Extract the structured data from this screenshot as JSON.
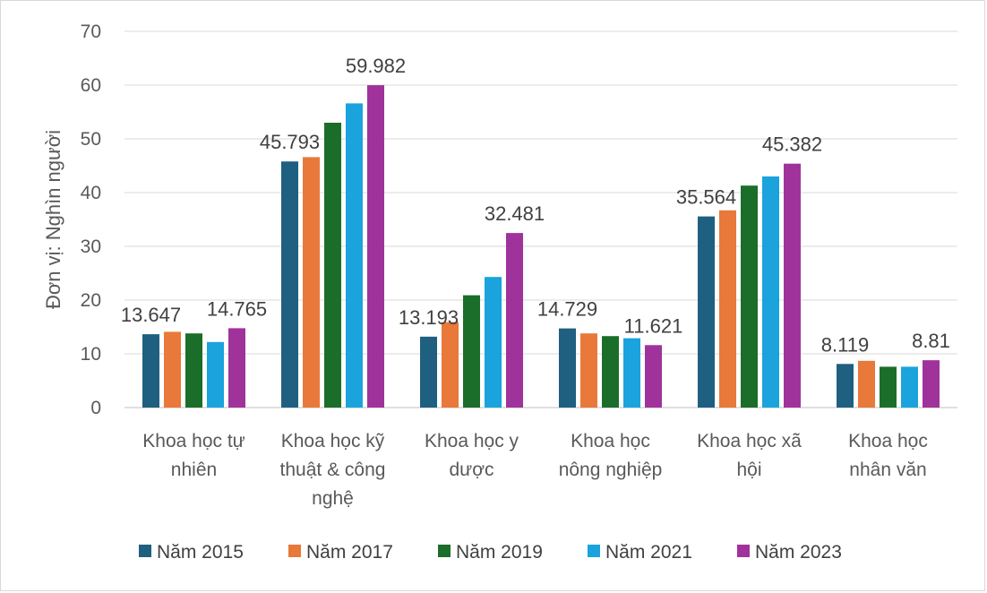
{
  "chart_data": {
    "type": "bar",
    "ylabel": "Đơn vị: Nghìn người",
    "ylim": [
      0,
      70
    ],
    "yticks": [
      0,
      10,
      20,
      30,
      40,
      50,
      60,
      70
    ],
    "grid": true,
    "legend_position": "bottom",
    "categories": [
      [
        "Khoa học tự",
        "nhiên"
      ],
      [
        "Khoa học kỹ",
        "thuật & công",
        "nghệ"
      ],
      [
        "Khoa học y",
        "dược"
      ],
      [
        "Khoa học",
        "nông nghiệp"
      ],
      [
        "Khoa học xã",
        "hội"
      ],
      [
        "Khoa học",
        "nhân văn"
      ]
    ],
    "series": [
      {
        "name": "Năm 2015",
        "color": "#1f5f80",
        "values": [
          13.647,
          45.793,
          13.193,
          14.729,
          35.564,
          8.119
        ]
      },
      {
        "name": "Năm 2017",
        "color": "#e8793a",
        "values": [
          14.1,
          46.6,
          15.9,
          13.8,
          36.7,
          8.7
        ]
      },
      {
        "name": "Năm 2019",
        "color": "#1b6e2a",
        "values": [
          13.8,
          53.0,
          20.9,
          13.3,
          41.3,
          7.6
        ]
      },
      {
        "name": "Năm 2021",
        "color": "#1aa3dc",
        "values": [
          12.2,
          56.6,
          24.3,
          12.9,
          43.0,
          7.6
        ]
      },
      {
        "name": "Năm 2023",
        "color": "#a0329c",
        "values": [
          14.765,
          59.982,
          32.481,
          11.621,
          45.382,
          8.81
        ]
      }
    ],
    "data_labels": [
      {
        "category": 0,
        "series": 0,
        "text": "13.647"
      },
      {
        "category": 0,
        "series": 4,
        "text": "14.765"
      },
      {
        "category": 1,
        "series": 0,
        "text": "45.793"
      },
      {
        "category": 1,
        "series": 4,
        "text": "59.982"
      },
      {
        "category": 2,
        "series": 0,
        "text": "13.193"
      },
      {
        "category": 2,
        "series": 4,
        "text": "32.481"
      },
      {
        "category": 3,
        "series": 0,
        "text": "14.729"
      },
      {
        "category": 3,
        "series": 4,
        "text": "11.621"
      },
      {
        "category": 4,
        "series": 0,
        "text": "35.564"
      },
      {
        "category": 4,
        "series": 4,
        "text": "45.382"
      },
      {
        "category": 5,
        "series": 0,
        "text": "8.119"
      },
      {
        "category": 5,
        "series": 4,
        "text": "8.81"
      }
    ]
  }
}
